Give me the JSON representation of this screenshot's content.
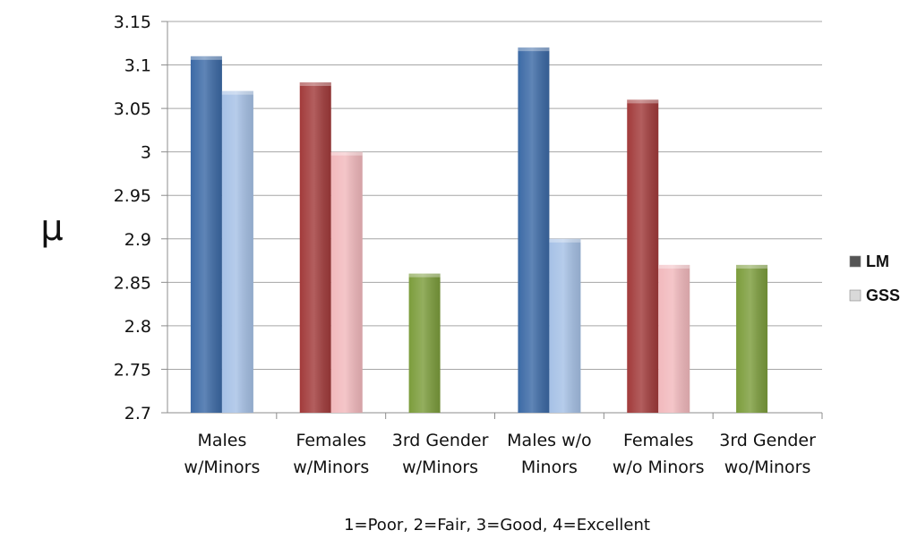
{
  "chart_data": {
    "type": "bar",
    "categories": [
      [
        "Males",
        "w/Minors"
      ],
      [
        "Females",
        "w/Minors"
      ],
      [
        "3rd Gender",
        "w/Minors"
      ],
      [
        "Males w/o",
        "Minors"
      ],
      [
        "Females",
        "w/o Minors"
      ],
      [
        "3rd Gender",
        "wo/Minors"
      ]
    ],
    "series": [
      {
        "name": "LM",
        "values": [
          3.11,
          3.08,
          2.86,
          3.12,
          3.06,
          2.87
        ]
      },
      {
        "name": "GSS",
        "values": [
          3.07,
          3.0,
          null,
          2.9,
          2.87,
          null
        ]
      }
    ],
    "bar_colors": [
      {
        "lm": "#3c6aa6",
        "gss": "#a6c1e6"
      },
      {
        "lm": "#a23b3b",
        "gss": "#f2b9bd"
      },
      {
        "lm": "#7c9d3c",
        "gss": "#c9dca0"
      },
      {
        "lm": "#3c6aa6",
        "gss": "#a6c1e6"
      },
      {
        "lm": "#a23b3b",
        "gss": "#f2b9bd"
      },
      {
        "lm": "#7c9d3c",
        "gss": "#c9dca0"
      }
    ],
    "ylabel": "μ",
    "xlabel": "1=Poor, 2=Fair, 3=Good, 4=Excellent",
    "ylim": [
      2.7,
      3.15
    ],
    "yticks": [
      "2.7",
      "2.75",
      "2.8",
      "2.85",
      "2.9",
      "2.95",
      "3",
      "3.05",
      "3.1",
      "3.15"
    ],
    "grid": true,
    "legend_position": "right",
    "legend": [
      {
        "label": "LM",
        "color": "#555555"
      },
      {
        "label": "GSS",
        "color": "#d9d9d9"
      }
    ]
  }
}
